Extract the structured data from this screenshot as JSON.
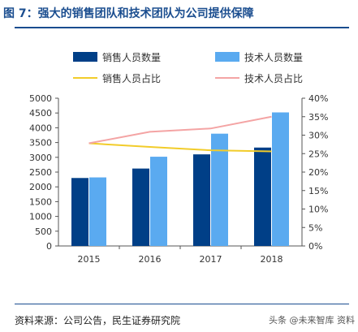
{
  "figure": {
    "title": "图 7：强大的销售团队和技术团队为公司提供保障",
    "source": "资料来源：公司公告，民生证券研究院",
    "watermark": "头条 @未来智库 资料"
  },
  "colors": {
    "title": "#1a4d8f",
    "sales_bar": "#003f87",
    "tech_bar": "#5aaaf0",
    "sales_line": "#f2cc2a",
    "tech_line": "#f4a4a4",
    "axis": "#555555"
  },
  "chart_data": {
    "type": "bar",
    "categories": [
      "2015",
      "2016",
      "2017",
      "2018"
    ],
    "series": [
      {
        "name": "销售人员数量",
        "kind": "bar",
        "axis": "left",
        "values": [
          2300,
          2620,
          3100,
          3330
        ]
      },
      {
        "name": "技术人员数量",
        "kind": "bar",
        "axis": "left",
        "values": [
          2320,
          3020,
          3800,
          4520
        ]
      },
      {
        "name": "销售人员占比",
        "kind": "line",
        "axis": "right",
        "values": [
          27.8,
          26.8,
          25.9,
          25.6
        ]
      },
      {
        "name": "技术人员占比",
        "kind": "line",
        "axis": "right",
        "values": [
          27.8,
          30.9,
          31.8,
          35.0
        ]
      }
    ],
    "left_axis": {
      "ylim": [
        0,
        5000
      ],
      "ticks": [
        "0",
        "500",
        "1000",
        "1500",
        "2000",
        "2500",
        "3000",
        "3500",
        "4000",
        "4500",
        "5000"
      ]
    },
    "right_axis": {
      "ylim": [
        0,
        40
      ],
      "ticks": [
        "0%",
        "5%",
        "10%",
        "15%",
        "20%",
        "25%",
        "30%",
        "35%",
        "40%"
      ]
    },
    "legend": "top",
    "grid": false
  }
}
